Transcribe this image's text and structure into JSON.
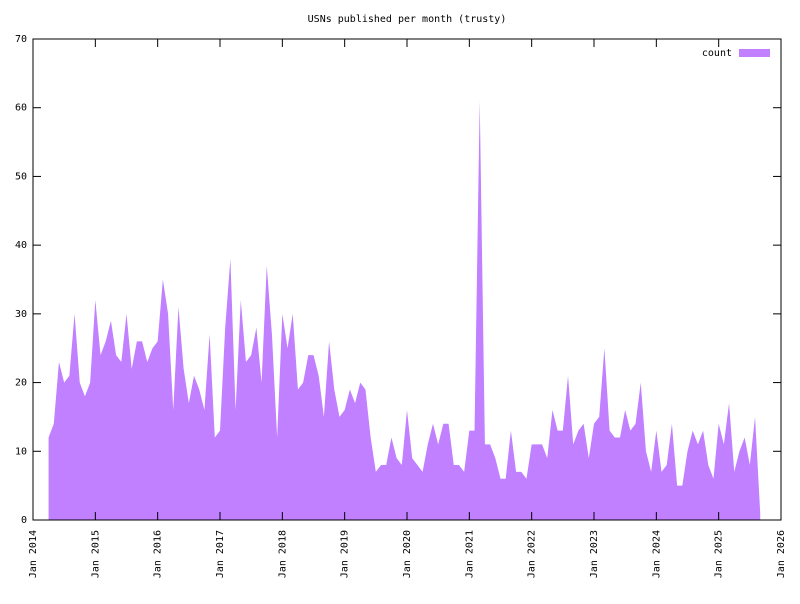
{
  "chart_data": {
    "type": "area",
    "title": "USNs published per month (trusty)",
    "x": [
      "2014-04",
      "2014-05",
      "2014-06",
      "2014-07",
      "2014-08",
      "2014-09",
      "2014-10",
      "2014-11",
      "2014-12",
      "2015-01",
      "2015-02",
      "2015-03",
      "2015-04",
      "2015-05",
      "2015-06",
      "2015-07",
      "2015-08",
      "2015-09",
      "2015-10",
      "2015-11",
      "2015-12",
      "2016-01",
      "2016-02",
      "2016-03",
      "2016-04",
      "2016-05",
      "2016-06",
      "2016-07",
      "2016-08",
      "2016-09",
      "2016-10",
      "2016-11",
      "2016-12",
      "2017-01",
      "2017-02",
      "2017-03",
      "2017-04",
      "2017-05",
      "2017-06",
      "2017-07",
      "2017-08",
      "2017-09",
      "2017-10",
      "2017-11",
      "2017-12",
      "2018-01",
      "2018-02",
      "2018-03",
      "2018-04",
      "2018-05",
      "2018-06",
      "2018-07",
      "2018-08",
      "2018-09",
      "2018-10",
      "2018-11",
      "2018-12",
      "2019-01",
      "2019-02",
      "2019-03",
      "2019-04",
      "2019-05",
      "2019-06",
      "2019-07",
      "2019-08",
      "2019-09",
      "2019-10",
      "2019-11",
      "2019-12",
      "2020-01",
      "2020-02",
      "2020-03",
      "2020-04",
      "2020-05",
      "2020-06",
      "2020-07",
      "2020-08",
      "2020-09",
      "2020-10",
      "2020-11",
      "2020-12",
      "2021-01",
      "2021-02",
      "2021-03",
      "2021-04",
      "2021-05",
      "2021-06",
      "2021-07",
      "2021-08",
      "2021-09",
      "2021-10",
      "2021-11",
      "2021-12",
      "2022-01",
      "2022-02",
      "2022-03",
      "2022-04",
      "2022-05",
      "2022-06",
      "2022-07",
      "2022-08",
      "2022-09",
      "2022-10",
      "2022-11",
      "2022-12",
      "2023-01",
      "2023-02",
      "2023-03",
      "2023-04",
      "2023-05",
      "2023-06",
      "2023-07",
      "2023-08",
      "2023-09",
      "2023-10",
      "2023-11",
      "2023-12",
      "2024-01",
      "2024-02",
      "2024-03",
      "2024-04",
      "2024-05",
      "2024-06",
      "2024-07",
      "2024-08",
      "2024-09",
      "2024-10",
      "2024-11",
      "2024-12",
      "2025-01",
      "2025-02",
      "2025-03",
      "2025-04",
      "2025-05",
      "2025-06",
      "2025-07",
      "2025-08",
      "2025-09"
    ],
    "series": [
      {
        "name": "count",
        "color": "#c080ff",
        "values": [
          12,
          14,
          23,
          20,
          21,
          30,
          20,
          18,
          20,
          32,
          24,
          26,
          29,
          24,
          23,
          30,
          22,
          26,
          26,
          23,
          25,
          26,
          35,
          30,
          16,
          31,
          22,
          17,
          21,
          19,
          16,
          27,
          12,
          13,
          28,
          38,
          16,
          32,
          23,
          24,
          28,
          20,
          37,
          27,
          12,
          30,
          25,
          30,
          19,
          20,
          24,
          24,
          21,
          15,
          26,
          19,
          15,
          16,
          19,
          17,
          20,
          19,
          12,
          7,
          8,
          8,
          12,
          9,
          8,
          16,
          9,
          8,
          7,
          11,
          14,
          11,
          14,
          14,
          8,
          8,
          7,
          13,
          13,
          61,
          11,
          11,
          9,
          6,
          6,
          13,
          7,
          7,
          6,
          11,
          11,
          11,
          9,
          16,
          13,
          13,
          21,
          11,
          13,
          14,
          9,
          14,
          15,
          25,
          13,
          12,
          12,
          16,
          13,
          14,
          20,
          10,
          7,
          13,
          7,
          8,
          14,
          5,
          5,
          10,
          13,
          11,
          13,
          8,
          6,
          14,
          11,
          17,
          7,
          10,
          12,
          8,
          15,
          1
        ]
      }
    ],
    "xlim": [
      "2014-01",
      "2026-01"
    ],
    "xticks": [
      {
        "value": "2014-01",
        "label": "Jan 2014"
      },
      {
        "value": "2015-01",
        "label": "Jan 2015"
      },
      {
        "value": "2016-01",
        "label": "Jan 2016"
      },
      {
        "value": "2017-01",
        "label": "Jan 2017"
      },
      {
        "value": "2018-01",
        "label": "Jan 2018"
      },
      {
        "value": "2019-01",
        "label": "Jan 2019"
      },
      {
        "value": "2020-01",
        "label": "Jan 2020"
      },
      {
        "value": "2021-01",
        "label": "Jan 2021"
      },
      {
        "value": "2022-01",
        "label": "Jan 2022"
      },
      {
        "value": "2023-01",
        "label": "Jan 2023"
      },
      {
        "value": "2024-01",
        "label": "Jan 2024"
      },
      {
        "value": "2025-01",
        "label": "Jan 2025"
      },
      {
        "value": "2026-01",
        "label": "Jan 2026"
      }
    ],
    "ylim": [
      0,
      70
    ],
    "yticks": [
      0,
      10,
      20,
      30,
      40,
      50,
      60,
      70
    ],
    "legend": "top-right"
  }
}
